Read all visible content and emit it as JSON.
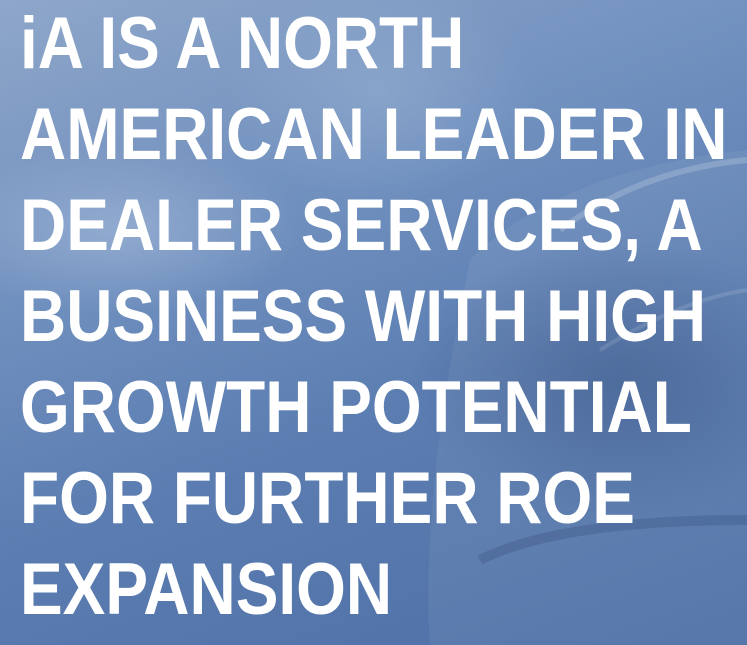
{
  "headline": {
    "lines": [
      "iA IS A NORTH",
      "AMERICAN LEADER IN",
      "DEALER SERVICES, A",
      "BUSINESS WITH HIGH",
      "GROWTH POTENTIAL",
      "FOR FURTHER ROE",
      "EXPANSION"
    ]
  }
}
